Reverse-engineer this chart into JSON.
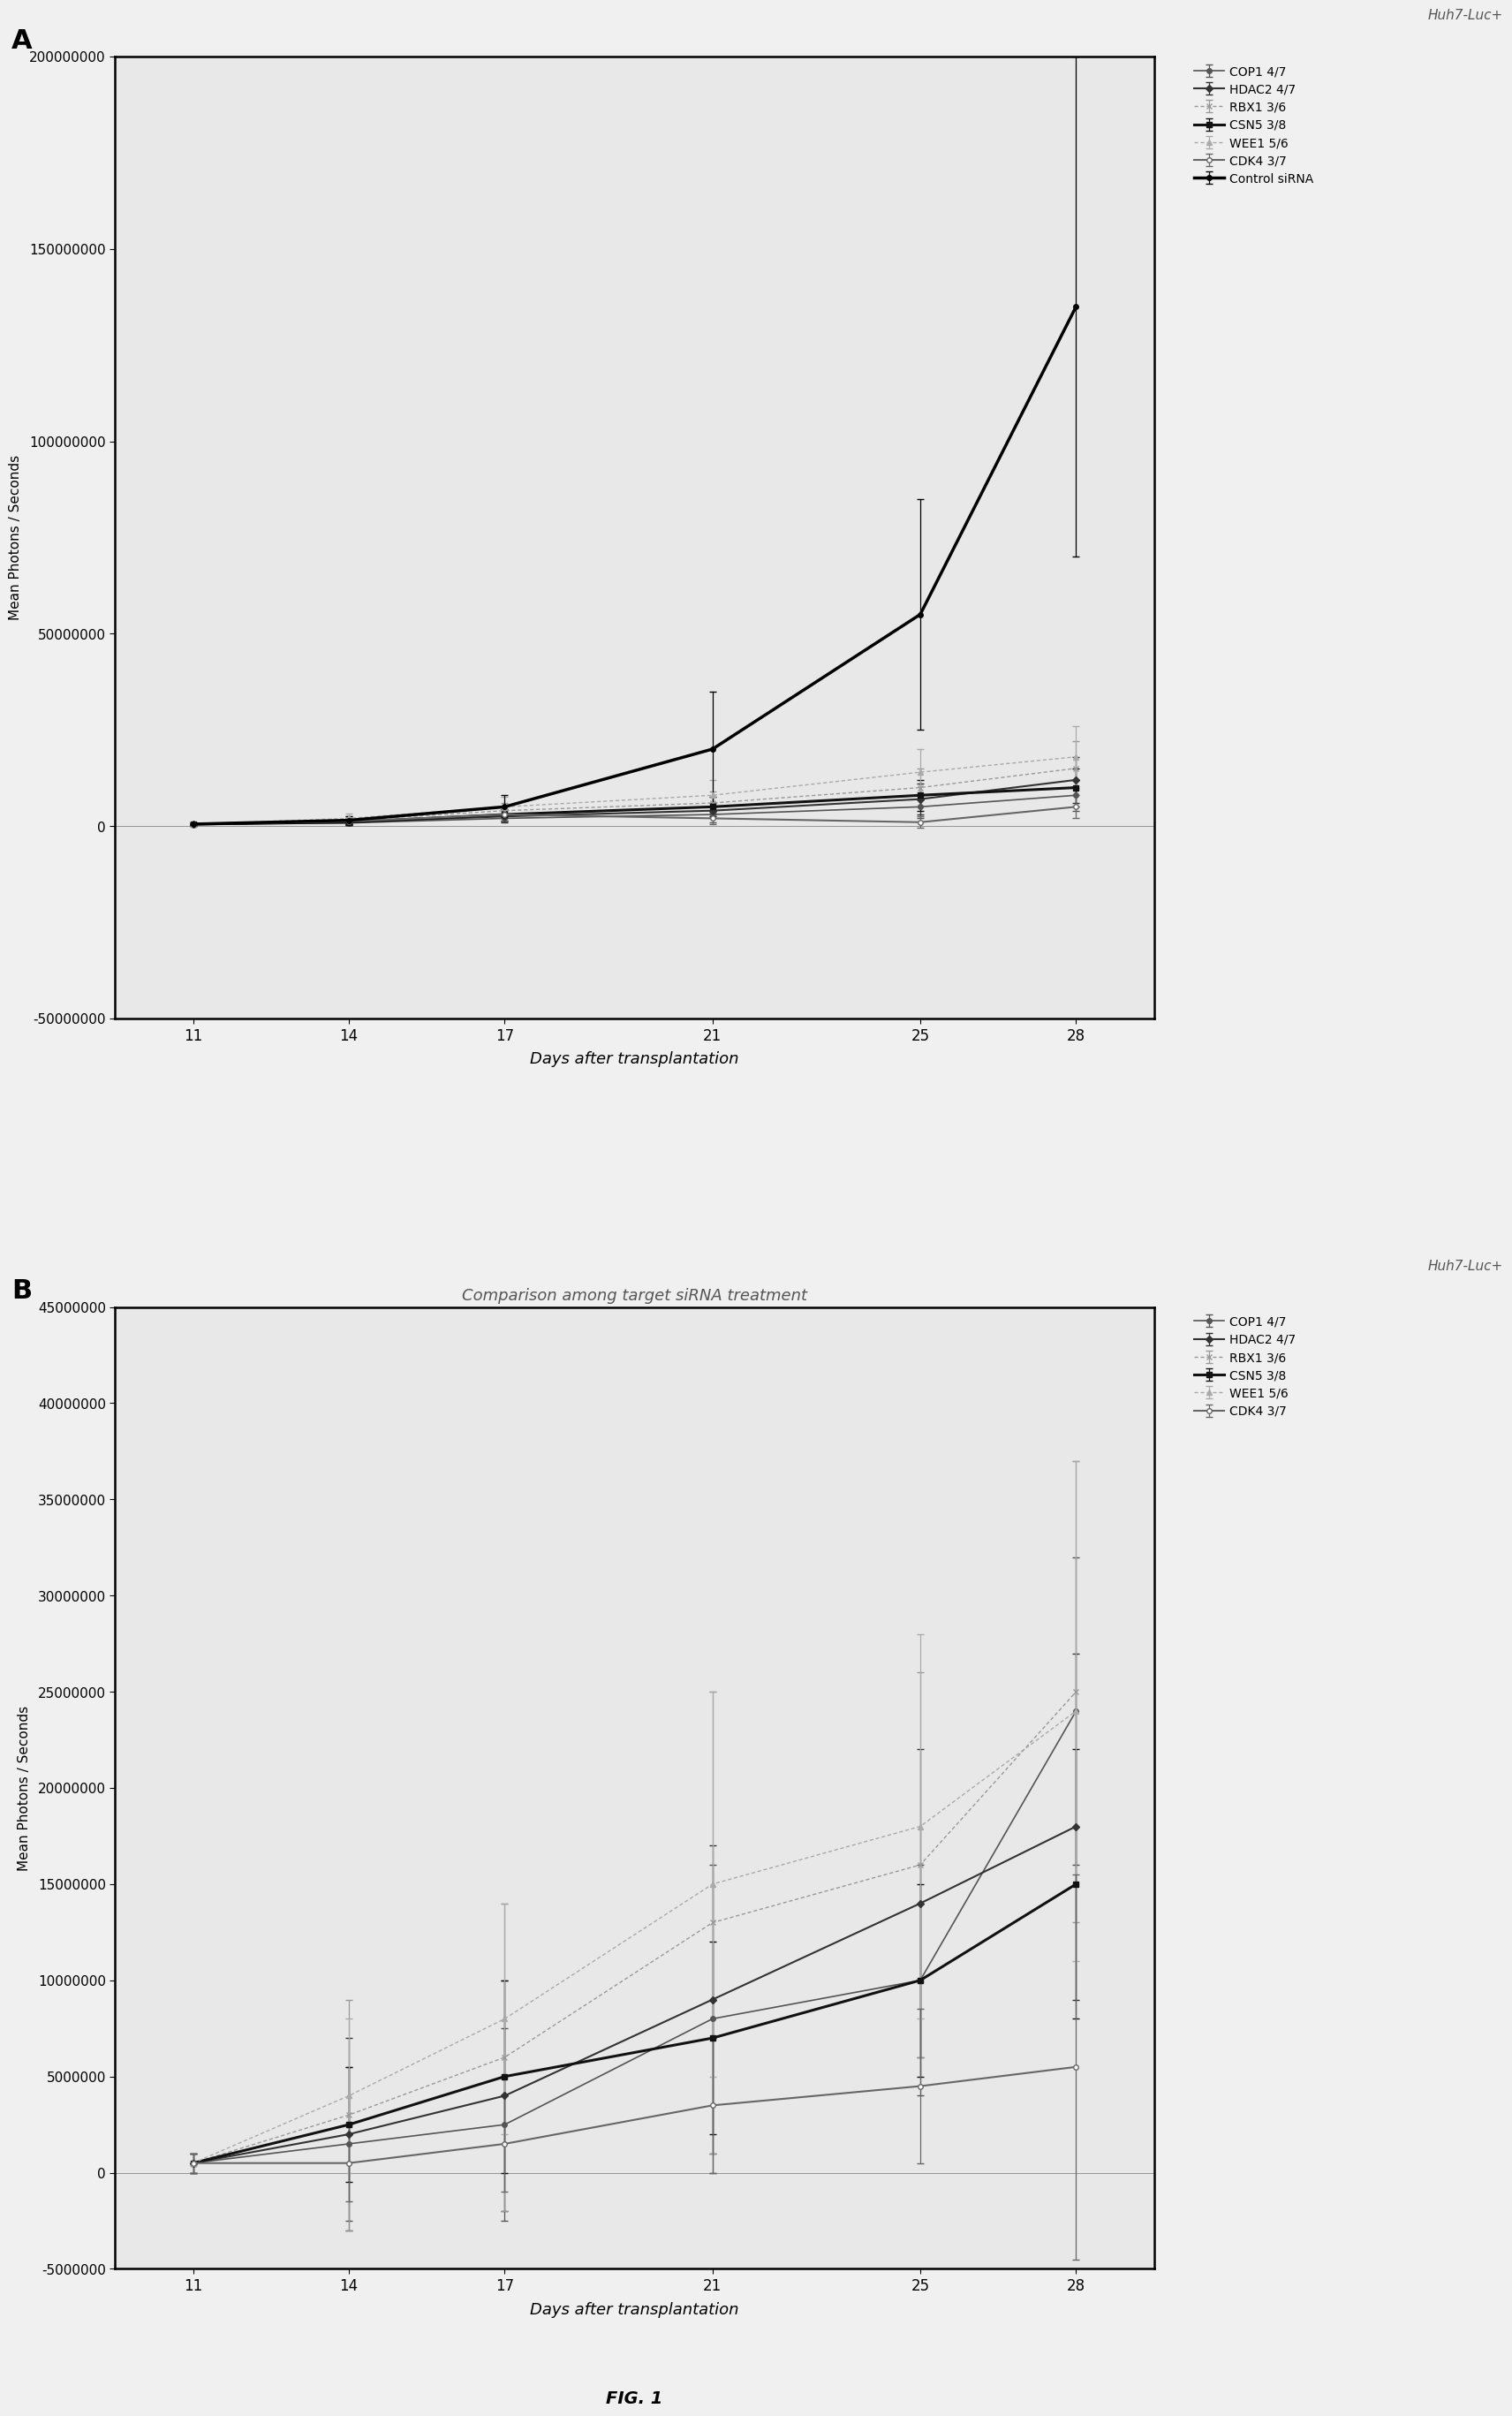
{
  "days": [
    11,
    14,
    17,
    21,
    25,
    28
  ],
  "panel_A": {
    "title": "",
    "subtitle": "Huh7-Luc+",
    "ylabel": "Mean Photons / Seconds",
    "xlabel": "Days after transplantation",
    "ylim": [
      -50000000,
      200000000
    ],
    "yticks": [
      -50000000,
      0,
      50000000,
      100000000,
      150000000,
      200000000
    ],
    "ytick_labels": [
      "-50000000",
      "0",
      "50000000",
      "100000000",
      "150000000",
      "200000000"
    ],
    "series": [
      {
        "name": "COP1 4/7",
        "y": [
          500000,
          800000,
          2000000,
          3000000,
          5000000,
          8000000
        ],
        "yerr": [
          500000,
          600000,
          800000,
          2000000,
          3000000,
          4000000
        ],
        "color": "#555555",
        "lw": 1.2,
        "marker": "o",
        "ms": 4,
        "ls": "-",
        "dashes": null,
        "mfc": "#555555"
      },
      {
        "name": "HDAC2 4/7",
        "y": [
          500000,
          1000000,
          2500000,
          4000000,
          7000000,
          12000000
        ],
        "yerr": [
          400000,
          800000,
          1500000,
          2000000,
          4000000,
          6000000
        ],
        "color": "#333333",
        "lw": 1.5,
        "marker": "D",
        "ms": 4,
        "ls": "-",
        "dashes": null,
        "mfc": "#333333"
      },
      {
        "name": "RBX1 3/6",
        "y": [
          500000,
          1500000,
          4000000,
          6000000,
          10000000,
          15000000
        ],
        "yerr": [
          300000,
          1000000,
          2000000,
          3000000,
          5000000,
          7000000
        ],
        "color": "#999999",
        "lw": 1.0,
        "marker": "x",
        "ms": 4,
        "ls": "--",
        "dashes": [
          3,
          2
        ],
        "mfc": "#999999"
      },
      {
        "name": "CSN5 3/8",
        "y": [
          500000,
          1000000,
          3000000,
          5000000,
          8000000,
          10000000
        ],
        "yerr": [
          300000,
          700000,
          1500000,
          2500000,
          4000000,
          5000000
        ],
        "color": "#111111",
        "lw": 2.2,
        "marker": "s",
        "ms": 4,
        "ls": "-",
        "dashes": null,
        "mfc": "#111111"
      },
      {
        "name": "WEE1 5/6",
        "y": [
          500000,
          2000000,
          5000000,
          8000000,
          14000000,
          18000000
        ],
        "yerr": [
          400000,
          1200000,
          2500000,
          4000000,
          6000000,
          8000000
        ],
        "color": "#aaaaaa",
        "lw": 1.0,
        "marker": "^",
        "ms": 4,
        "ls": "--",
        "dashes": [
          3,
          2
        ],
        "mfc": "#aaaaaa"
      },
      {
        "name": "CDK4 3/7",
        "y": [
          500000,
          1200000,
          3000000,
          2000000,
          1000000,
          5000000
        ],
        "yerr": [
          300000,
          800000,
          1500000,
          1500000,
          1500000,
          3000000
        ],
        "color": "#666666",
        "lw": 1.5,
        "marker": "o",
        "ms": 4,
        "ls": "-",
        "dashes": null,
        "mfc": "white"
      },
      {
        "name": "Control siRNA",
        "y": [
          500000,
          1500000,
          5000000,
          20000000,
          55000000,
          135000000
        ],
        "yerr": [
          200000,
          1000000,
          3000000,
          15000000,
          30000000,
          65000000
        ],
        "color": "#000000",
        "lw": 2.5,
        "marker": "o",
        "ms": 4,
        "ls": "-",
        "dashes": null,
        "mfc": "#000000"
      }
    ]
  },
  "panel_B": {
    "title": "Comparison among target siRNA treatment",
    "subtitle": "Huh7-Luc+",
    "ylabel": "Mean Photons / Seconds",
    "xlabel": "Days after transplantation",
    "ylim": [
      -5000000,
      45000000
    ],
    "yticks": [
      -5000000,
      0,
      5000000,
      10000000,
      15000000,
      20000000,
      25000000,
      30000000,
      35000000,
      40000000,
      45000000
    ],
    "ytick_labels": [
      "-5000000",
      "0",
      "5000000",
      "10000000",
      "15000000",
      "20000000",
      "25000000",
      "30000000",
      "35000000",
      "40000000",
      "45000000"
    ],
    "series": [
      {
        "name": "COP1 4/7",
        "y": [
          500000,
          1500000,
          2500000,
          8000000,
          10000000,
          24000000
        ],
        "yerr": [
          500000,
          4000000,
          5000000,
          8000000,
          6000000,
          8000000
        ],
        "color": "#555555",
        "lw": 1.2,
        "marker": "o",
        "ms": 4,
        "ls": "-",
        "dashes": null,
        "mfc": "#555555"
      },
      {
        "name": "HDAC2 4/7",
        "y": [
          500000,
          2000000,
          4000000,
          9000000,
          14000000,
          18000000
        ],
        "yerr": [
          500000,
          5000000,
          6000000,
          8000000,
          8000000,
          9000000
        ],
        "color": "#333333",
        "lw": 1.5,
        "marker": "D",
        "ms": 4,
        "ls": "-",
        "dashes": null,
        "mfc": "#333333"
      },
      {
        "name": "RBX1 3/6",
        "y": [
          500000,
          3000000,
          6000000,
          13000000,
          16000000,
          25000000
        ],
        "yerr": [
          500000,
          6000000,
          8000000,
          12000000,
          10000000,
          12000000
        ],
        "color": "#999999",
        "lw": 1.0,
        "marker": "x",
        "ms": 4,
        "ls": "--",
        "dashes": [
          3,
          2
        ],
        "mfc": "#999999"
      },
      {
        "name": "CSN5 3/8",
        "y": [
          500000,
          2500000,
          5000000,
          7000000,
          10000000,
          15000000
        ],
        "yerr": [
          500000,
          3000000,
          5000000,
          5000000,
          5000000,
          7000000
        ],
        "color": "#111111",
        "lw": 2.2,
        "marker": "s",
        "ms": 4,
        "ls": "-",
        "dashes": null,
        "mfc": "#111111"
      },
      {
        "name": "WEE1 5/6",
        "y": [
          500000,
          4000000,
          8000000,
          15000000,
          18000000,
          24000000
        ],
        "yerr": [
          500000,
          4000000,
          6000000,
          10000000,
          10000000,
          13000000
        ],
        "color": "#aaaaaa",
        "lw": 1.0,
        "marker": "^",
        "ms": 4,
        "ls": "--",
        "dashes": [
          3,
          2
        ],
        "mfc": "#aaaaaa"
      },
      {
        "name": "CDK4 3/7",
        "y": [
          500000,
          500000,
          1500000,
          3500000,
          4500000,
          5500000
        ],
        "yerr": [
          500000,
          2000000,
          2500000,
          3500000,
          4000000,
          10000000
        ],
        "color": "#666666",
        "lw": 1.5,
        "marker": "o",
        "ms": 4,
        "ls": "-",
        "dashes": null,
        "mfc": "white"
      }
    ]
  },
  "fig_label": "FIG. 1",
  "outer_bg": "#c8c8c8",
  "inner_bg": "#d8d8d8",
  "plot_bg": "#e8e8e8"
}
